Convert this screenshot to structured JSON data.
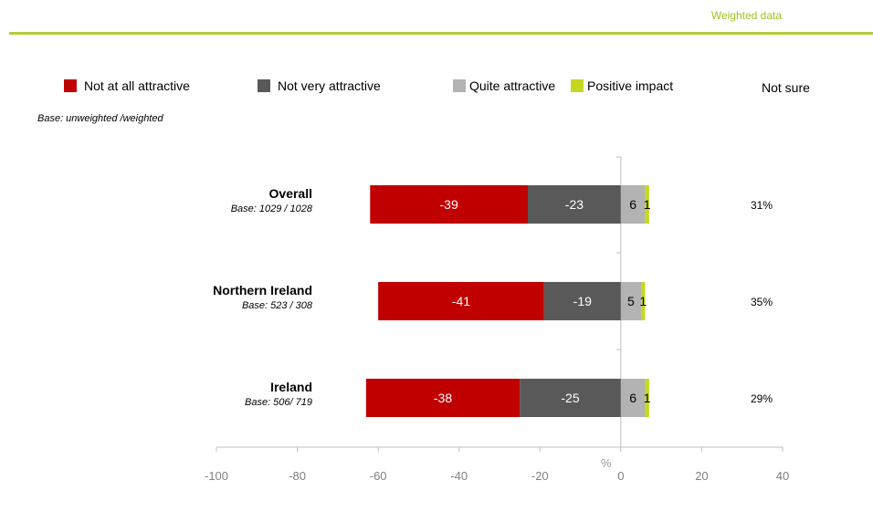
{
  "header": {
    "label": "Weighted data"
  },
  "legend": {
    "items": [
      {
        "label": "Not at all attractive",
        "color": "#c00000"
      },
      {
        "label": "Not very attractive",
        "color": "#595959"
      },
      {
        "label": "Quite attractive",
        "color": "#b3b3b3"
      },
      {
        "label": "Positive impact",
        "color": "#c5d81f"
      },
      {
        "label": "Not sure",
        "color": ""
      }
    ]
  },
  "base_note": "Base: unweighted /weighted",
  "axis_unit": "%",
  "chart_data": {
    "type": "bar",
    "orientation": "horizontal",
    "stacked": true,
    "diverging": true,
    "categories": [
      "Overall",
      "Northern Ireland",
      "Ireland"
    ],
    "category_bases": [
      "Base: 1029 / 1028",
      "Base: 523 / 308",
      "Base: 506/ 719"
    ],
    "series": [
      {
        "name": "Not at all attractive",
        "color": "#c00000",
        "values": [
          -39,
          -41,
          -38
        ],
        "labels": [
          "-39",
          "-41",
          "-38"
        ]
      },
      {
        "name": "Not very attractive",
        "color": "#595959",
        "values": [
          -23,
          -19,
          -25
        ],
        "labels": [
          "-23",
          "-19",
          "-25"
        ]
      },
      {
        "name": "Quite attractive",
        "color": "#b3b3b3",
        "values": [
          6,
          5,
          6
        ],
        "labels": [
          "6",
          "5",
          "6"
        ]
      },
      {
        "name": "Positive impact",
        "color": "#c5d81f",
        "values": [
          1,
          1,
          1
        ],
        "labels": [
          "1",
          "1",
          "1"
        ]
      }
    ],
    "not_sure": [
      "31%",
      "35%",
      "29%"
    ],
    "xlim": [
      -100,
      40
    ],
    "xticks": [
      -100,
      -80,
      -60,
      -40,
      -20,
      0,
      20,
      40
    ],
    "xtick_labels": [
      "-100",
      "-80",
      "-60",
      "-40",
      "-20",
      "0",
      "20",
      "40"
    ],
    "grid": false
  }
}
